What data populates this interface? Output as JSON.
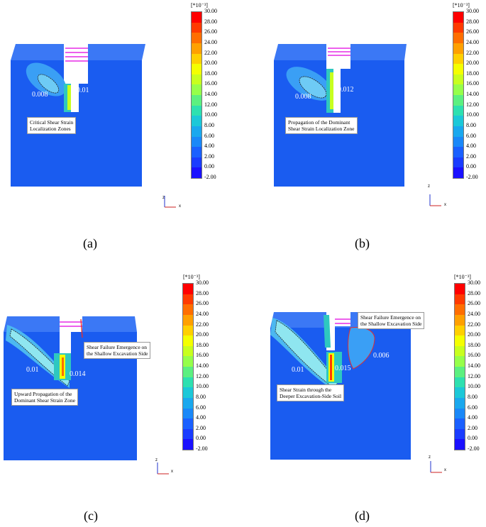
{
  "colorbar": {
    "unit": "[*10⁻³]",
    "ticks": [
      "30.00",
      "28.00",
      "26.00",
      "24.00",
      "22.00",
      "20.00",
      "18.00",
      "16.00",
      "14.00",
      "12.00",
      "10.00",
      "8.00",
      "6.00",
      "4.00",
      "2.00",
      "0.00",
      "-2.00"
    ],
    "colors": [
      "#ff0000",
      "#ff3a00",
      "#ff6e00",
      "#ffa000",
      "#ffd000",
      "#f4ff00",
      "#c8ff1e",
      "#96ff4a",
      "#5cf080",
      "#2ee0b0",
      "#1cc8d8",
      "#1aa8ee",
      "#1a88f8",
      "#1a60ff",
      "#1a3cff",
      "#1a10ff"
    ]
  },
  "axis": {
    "z": "z",
    "x": "x"
  },
  "panels": [
    {
      "caption": "(a)",
      "values": [
        "0.008",
        "0.01"
      ],
      "annotations": [
        [
          "Critical Shear Strain",
          "Localization Zones"
        ]
      ]
    },
    {
      "caption": "(b)",
      "values": [
        "0.008",
        "0.012"
      ],
      "annotations": [
        [
          "Propagation of the Dominant",
          "Shear Strain Localization Zone"
        ]
      ]
    },
    {
      "caption": "(c)",
      "values": [
        "0.01",
        "0.014"
      ],
      "annotations": [
        [
          "Shear Failure Emergence on",
          "the Shallow Excavation Side"
        ],
        [
          "Upward Propagation of the",
          "Dominant Shear Strain Zone"
        ]
      ]
    },
    {
      "caption": "(d)",
      "values": [
        "0.01",
        "0.015",
        "0.006"
      ],
      "annotations": [
        [
          "Shear Failure Emergence on",
          "the Shallow Excavation Side"
        ],
        [
          "Shear Strain through the",
          "Deeper Excavation-Side Soil"
        ]
      ]
    }
  ]
}
